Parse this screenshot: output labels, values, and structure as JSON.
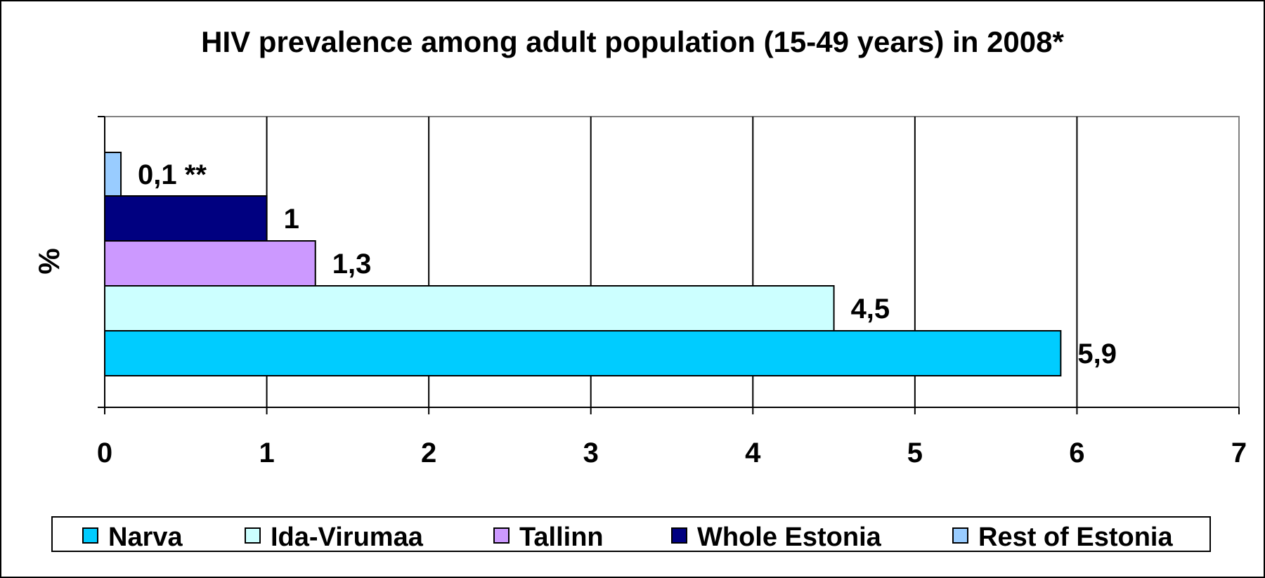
{
  "chart_data": {
    "type": "bar",
    "orientation": "horizontal",
    "title": "HIV prevalence among adult population (15-49 years) in 2008*",
    "ylabel": "%",
    "xlim": [
      0,
      7
    ],
    "x_ticks": [
      "0",
      "1",
      "2",
      "3",
      "4",
      "5",
      "6",
      "7"
    ],
    "grid": "vertical",
    "legend_position": "bottom",
    "series": [
      {
        "name": "Narva",
        "value": 5.9,
        "label": "5,9",
        "color": "#00CCFF"
      },
      {
        "name": "Ida-Virumaa",
        "value": 4.5,
        "label": "4,5",
        "color": "#CCFFFF"
      },
      {
        "name": "Tallinn",
        "value": 1.3,
        "label": "1,3",
        "color": "#CC99FF"
      },
      {
        "name": "Whole Estonia",
        "value": 1,
        "label": "1",
        "color": "#000080"
      },
      {
        "name": "Rest of Estonia",
        "value": 0.1,
        "label": "0,1 **",
        "color": "#99CCFF"
      }
    ]
  }
}
